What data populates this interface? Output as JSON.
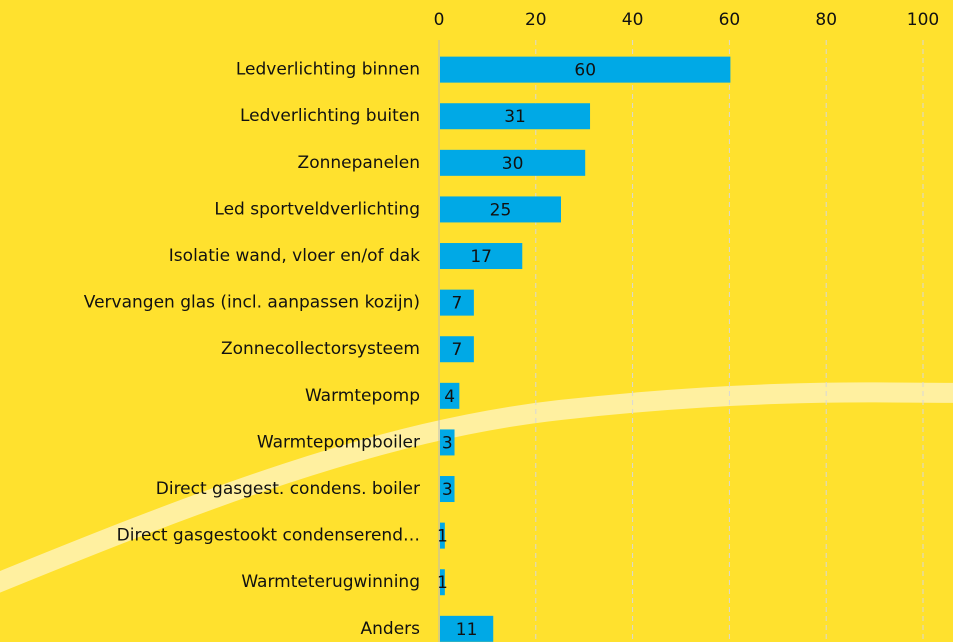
{
  "chart_data": {
    "type": "bar",
    "orientation": "horizontal",
    "categories": [
      "Ledverlichting binnen",
      "Ledverlichting buiten",
      "Zonnepanelen",
      "Led sportveldverlichting",
      "Isolatie wand, vloer en/of dak",
      "Vervangen glas (incl. aanpassen kozijn)",
      "Zonnecollectorsysteem",
      "Warmtepomp",
      "Warmtepompboiler",
      "Direct gasgest. condens. boiler",
      "Direct gasgestookt condenserend…",
      "Warmteterugwinning",
      "Anders"
    ],
    "values": [
      60,
      31,
      30,
      25,
      17,
      7,
      7,
      4,
      3,
      3,
      1,
      1,
      11
    ],
    "color": "#00a9e6",
    "xlim": [
      0,
      100
    ],
    "xticks": [
      0,
      20,
      40,
      60,
      80,
      100
    ],
    "grid": true
  }
}
